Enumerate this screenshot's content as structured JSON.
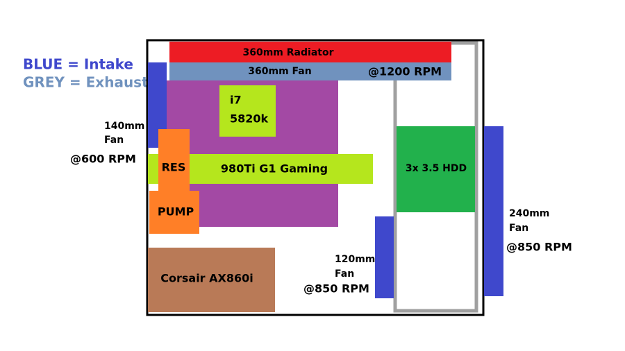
{
  "legend": {
    "intake": "BLUE = Intake",
    "exhaust": "GREY = Exhaust"
  },
  "components": {
    "radiator": "360mm Radiator",
    "top_fan": "360mm Fan",
    "top_fan_rpm": "@1200 RPM",
    "cpu": [
      "i7",
      "5820k"
    ],
    "gpu": "980Ti G1 Gaming",
    "reservoir": "RES",
    "pump": "PUMP",
    "psu": "Corsair AX860i",
    "hdd": "3x 3.5 HDD"
  },
  "annotations": {
    "rear_fan": [
      "140mm",
      "Fan"
    ],
    "rear_fan_rpm": "@600 RPM",
    "bottom_front_fan": [
      "120mm",
      "Fan"
    ],
    "bottom_front_fan_rpm": "@850 RPM",
    "front_fan": [
      "240mm",
      "Fan"
    ],
    "front_fan_rpm": "@850 RPM"
  }
}
